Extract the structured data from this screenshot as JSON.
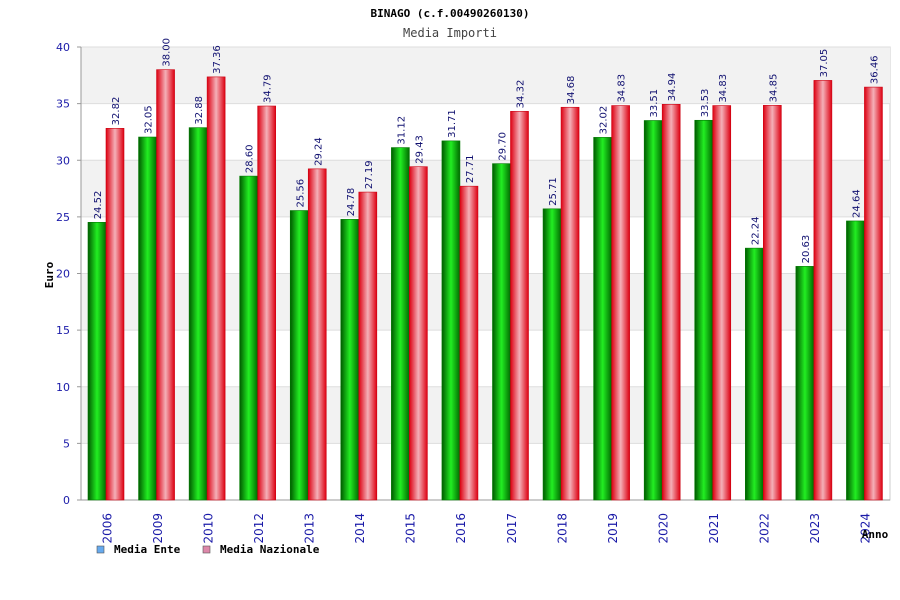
{
  "chart_data": {
    "type": "bar",
    "title": "BINAGO (c.f.00490260130)",
    "subtitle": "Media Importi",
    "ylabel": "Euro",
    "xlabel": "Anno",
    "ylim": [
      0,
      40
    ],
    "yticks": [
      0,
      5,
      10,
      15,
      20,
      25,
      30,
      35,
      40
    ],
    "grid": true,
    "legend_position": "bottom-left",
    "categories": [
      "2006",
      "2009",
      "2010",
      "2012",
      "2013",
      "2014",
      "2015",
      "2016",
      "2017",
      "2018",
      "2019",
      "2020",
      "2021",
      "2022",
      "2023",
      "2024"
    ],
    "series": [
      {
        "name": "Media Ente",
        "color": "#00aa00",
        "legend_color": "#66aaee",
        "values": [
          24.52,
          32.05,
          32.88,
          28.6,
          25.56,
          24.78,
          31.12,
          31.71,
          29.7,
          25.71,
          32.02,
          33.51,
          33.53,
          22.24,
          20.63,
          24.64
        ],
        "labels": [
          "24.52",
          "32.05",
          "32.88",
          "28.60",
          "25.56",
          "24.78",
          "31.12",
          "31.71",
          "29.70",
          "25.71",
          "32.02",
          "33.51",
          "33.53",
          "22.24",
          "20.63",
          "24.64"
        ]
      },
      {
        "name": "Media Nazionale",
        "color": "#ee1122",
        "legend_color": "#dd88aa",
        "values": [
          32.82,
          38.0,
          37.36,
          34.79,
          29.24,
          27.19,
          29.43,
          27.71,
          34.32,
          34.68,
          34.83,
          34.94,
          34.83,
          34.85,
          37.05,
          36.46
        ],
        "labels": [
          "32.82",
          "38.00",
          "37.36",
          "34.79",
          "29.24",
          "27.19",
          "29.43",
          "27.71",
          "34.32",
          "34.68",
          "34.83",
          "34.94",
          "34.83",
          "34.85",
          "37.05",
          "36.46"
        ]
      }
    ]
  }
}
